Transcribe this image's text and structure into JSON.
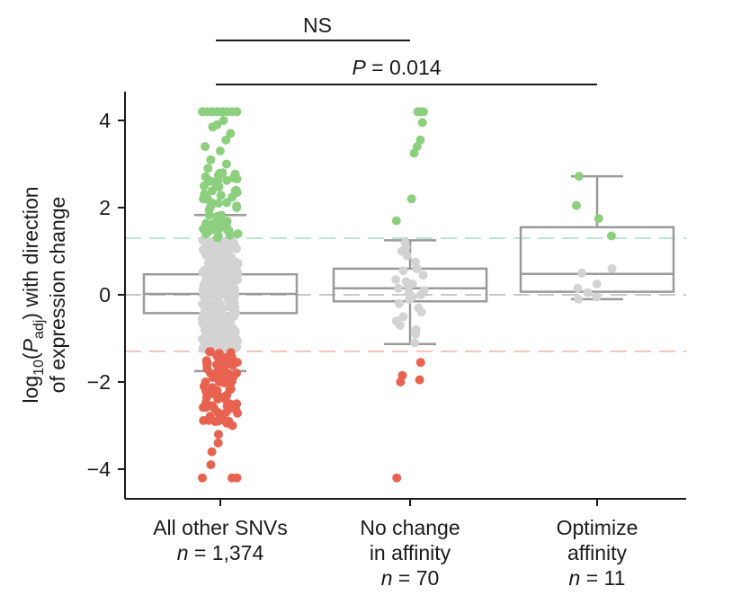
{
  "chart_data": {
    "type": "box",
    "ylabel_line1_prefix": "log",
    "ylabel_line1_sub": "10",
    "ylabel_line1_open": "(",
    "ylabel_line1_p": "P",
    "ylabel_line1_psub": "adj",
    "ylabel_line1_rest": ") with direction",
    "ylabel_line2": "of expression change",
    "ylim": [
      -4.5,
      4.6
    ],
    "yticks": [
      4,
      2,
      0,
      -2,
      -4
    ],
    "ytick_labels": [
      "4",
      "2",
      "0",
      "−2",
      "−4"
    ],
    "reference_lines": [
      {
        "y": 1.3,
        "color": "#bfe3d2"
      },
      {
        "y": 0,
        "color": "#c8c8c8"
      },
      {
        "y": -1.3,
        "color": "#f5c6c0"
      }
    ],
    "colors": {
      "up": "#8ccf7e",
      "neutral": "#d3d3d3",
      "down": "#e8634f",
      "box": "#9a9a9a"
    },
    "groups": [
      {
        "label_line1": "All other SNVs",
        "label_n_prefix": "n",
        "label_n_value": " = 1,374",
        "whisker_low": -1.75,
        "q1": -0.42,
        "median": 0.02,
        "q3": 0.47,
        "whisker_high": 1.83,
        "points": [
          [
            4.2,
            "up"
          ],
          [
            4.2,
            "up"
          ],
          [
            4.2,
            "up"
          ],
          [
            4.2,
            "up"
          ],
          [
            4.2,
            "up"
          ],
          [
            4.2,
            "up"
          ],
          [
            4.2,
            "up"
          ],
          [
            4.2,
            "up"
          ],
          [
            4.0,
            "up"
          ],
          [
            3.9,
            "up"
          ],
          [
            3.85,
            "up"
          ],
          [
            3.7,
            "up"
          ],
          [
            3.55,
            "up"
          ],
          [
            3.4,
            "up"
          ],
          [
            3.3,
            "up"
          ],
          [
            3.1,
            "up"
          ],
          [
            3.0,
            "up"
          ],
          [
            2.9,
            "up"
          ],
          [
            2.8,
            "up"
          ],
          [
            2.75,
            "up"
          ],
          [
            2.6,
            "up"
          ],
          [
            2.5,
            "up"
          ],
          [
            2.4,
            "up"
          ],
          [
            2.35,
            "up"
          ],
          [
            2.2,
            "up"
          ],
          [
            2.1,
            "up"
          ],
          [
            2.0,
            "up"
          ],
          [
            1.95,
            "up"
          ],
          [
            1.8,
            "up"
          ],
          [
            1.7,
            "up"
          ],
          [
            1.6,
            "up"
          ],
          [
            1.5,
            "up"
          ],
          [
            1.45,
            "up"
          ],
          [
            1.4,
            "up"
          ],
          [
            1.35,
            "up"
          ],
          [
            1.2,
            "neutral"
          ],
          [
            1.0,
            "neutral"
          ],
          [
            0.8,
            "neutral"
          ],
          [
            0.6,
            "neutral"
          ],
          [
            0.4,
            "neutral"
          ],
          [
            0.2,
            "neutral"
          ],
          [
            0.0,
            "neutral"
          ],
          [
            -0.2,
            "neutral"
          ],
          [
            -0.4,
            "neutral"
          ],
          [
            -0.6,
            "neutral"
          ],
          [
            -0.8,
            "neutral"
          ],
          [
            -1.0,
            "neutral"
          ],
          [
            -1.2,
            "neutral"
          ],
          [
            -1.35,
            "down"
          ],
          [
            -1.4,
            "down"
          ],
          [
            -1.5,
            "down"
          ],
          [
            -1.6,
            "down"
          ],
          [
            -1.7,
            "down"
          ],
          [
            -1.8,
            "down"
          ],
          [
            -1.9,
            "down"
          ],
          [
            -2.0,
            "down"
          ],
          [
            -2.1,
            "down"
          ],
          [
            -2.2,
            "down"
          ],
          [
            -2.3,
            "down"
          ],
          [
            -2.4,
            "down"
          ],
          [
            -2.5,
            "down"
          ],
          [
            -2.6,
            "down"
          ],
          [
            -2.7,
            "down"
          ],
          [
            -2.8,
            "down"
          ],
          [
            -2.9,
            "down"
          ],
          [
            -3.0,
            "down"
          ],
          [
            -3.2,
            "down"
          ],
          [
            -3.4,
            "down"
          ],
          [
            -3.6,
            "down"
          ],
          [
            -3.9,
            "down"
          ],
          [
            -4.2,
            "down"
          ],
          [
            -4.2,
            "down"
          ],
          [
            -4.2,
            "down"
          ]
        ]
      },
      {
        "label_line1": "No change",
        "label_line2": "in affinity",
        "label_n_prefix": "n",
        "label_n_value": " = 70",
        "whisker_low": -1.13,
        "q1": -0.15,
        "median": 0.15,
        "q3": 0.6,
        "whisker_high": 1.25,
        "points": [
          [
            4.2,
            "up"
          ],
          [
            4.2,
            "up"
          ],
          [
            4.2,
            "up"
          ],
          [
            3.95,
            "up"
          ],
          [
            3.55,
            "up"
          ],
          [
            3.4,
            "up"
          ],
          [
            3.25,
            "up"
          ],
          [
            2.2,
            "up"
          ],
          [
            1.7,
            "up"
          ],
          [
            1.2,
            "neutral"
          ],
          [
            1.1,
            "neutral"
          ],
          [
            1.0,
            "neutral"
          ],
          [
            0.9,
            "neutral"
          ],
          [
            0.75,
            "neutral"
          ],
          [
            0.6,
            "neutral"
          ],
          [
            0.55,
            "neutral"
          ],
          [
            0.45,
            "neutral"
          ],
          [
            0.35,
            "neutral"
          ],
          [
            0.3,
            "neutral"
          ],
          [
            0.25,
            "neutral"
          ],
          [
            0.2,
            "neutral"
          ],
          [
            0.15,
            "neutral"
          ],
          [
            0.1,
            "neutral"
          ],
          [
            0.05,
            "neutral"
          ],
          [
            0.0,
            "neutral"
          ],
          [
            -0.05,
            "neutral"
          ],
          [
            -0.1,
            "neutral"
          ],
          [
            -0.2,
            "neutral"
          ],
          [
            -0.3,
            "neutral"
          ],
          [
            -0.4,
            "neutral"
          ],
          [
            -0.5,
            "neutral"
          ],
          [
            -0.6,
            "neutral"
          ],
          [
            -0.7,
            "neutral"
          ],
          [
            -0.8,
            "neutral"
          ],
          [
            -0.9,
            "neutral"
          ],
          [
            -1.1,
            "neutral"
          ],
          [
            -1.55,
            "down"
          ],
          [
            -1.85,
            "down"
          ],
          [
            -1.95,
            "down"
          ],
          [
            -2.0,
            "down"
          ],
          [
            -4.2,
            "down"
          ]
        ]
      },
      {
        "label_line1": "Optimize",
        "label_line2": "affinity",
        "label_n_prefix": "n",
        "label_n_value": " = 11",
        "whisker_low": -0.1,
        "q1": 0.07,
        "median": 0.48,
        "q3": 1.55,
        "whisker_high": 2.72,
        "points": [
          [
            2.72,
            "up"
          ],
          [
            2.05,
            "up"
          ],
          [
            1.75,
            "up"
          ],
          [
            1.35,
            "up"
          ],
          [
            0.6,
            "neutral"
          ],
          [
            0.5,
            "neutral"
          ],
          [
            0.25,
            "neutral"
          ],
          [
            0.15,
            "neutral"
          ],
          [
            0.05,
            "neutral"
          ],
          [
            -0.05,
            "neutral"
          ],
          [
            -0.1,
            "neutral"
          ]
        ]
      }
    ],
    "significance": [
      {
        "label": "NS",
        "from": 0,
        "to": 1
      },
      {
        "label_prefix": "P",
        "label_value": " = 0.014",
        "from": 0,
        "to": 2
      }
    ]
  }
}
